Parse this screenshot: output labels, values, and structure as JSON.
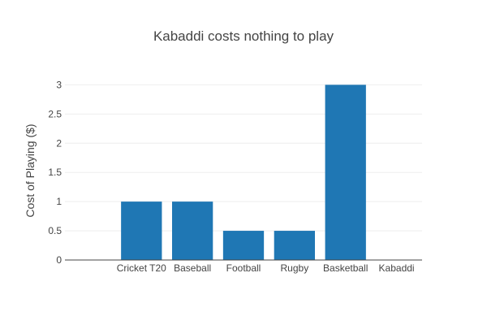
{
  "chart_data": {
    "type": "bar",
    "title": "Kabaddi costs nothing to play",
    "xlabel": "",
    "ylabel": "Cost of Playing ($)",
    "categories": [
      "",
      "Cricket T20",
      "Baseball",
      "Football",
      "Rugby",
      "Basketball",
      "Kabaddi"
    ],
    "values": [
      0,
      1,
      1,
      0.5,
      0.5,
      3,
      0
    ],
    "ylim": [
      0,
      3.2
    ],
    "yticks": [
      0,
      0.5,
      1,
      1.5,
      2,
      2.5,
      3
    ],
    "ytick_labels": [
      "0",
      "0.5",
      "1",
      "1.5",
      "2",
      "2.5",
      "3"
    ],
    "grid": true,
    "bar_color": "#1f77b4"
  }
}
